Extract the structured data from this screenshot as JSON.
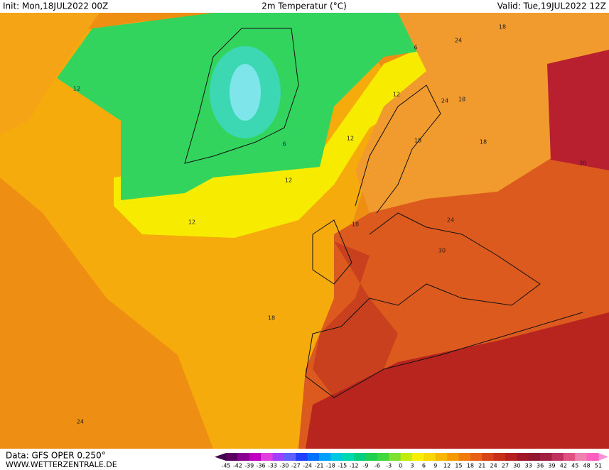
{
  "header": {
    "init": "Init: Mon,18JUL2022 00Z",
    "title": "2m Temperatur (°C)",
    "valid": "Valid: Tue,19JUL2022 12Z"
  },
  "map": {
    "contour_labels": [
      18,
      24,
      6,
      12,
      12,
      24,
      18,
      12,
      18,
      18,
      6,
      30,
      12,
      12,
      18,
      24,
      30,
      18,
      24
    ]
  },
  "colorbar": {
    "labels": [
      -45,
      -42,
      -39,
      -36,
      -33,
      -30,
      -27,
      -24,
      -21,
      -18,
      -15,
      -12,
      -9,
      -6,
      -3,
      0,
      3,
      6,
      9,
      12,
      15,
      18,
      21,
      24,
      27,
      30,
      33,
      36,
      39,
      42,
      45,
      48,
      51
    ]
  },
  "footer": {
    "source": "Data: GFS OPER 0.250°",
    "site": "WWW.WETTERZENTRALE.DE"
  }
}
